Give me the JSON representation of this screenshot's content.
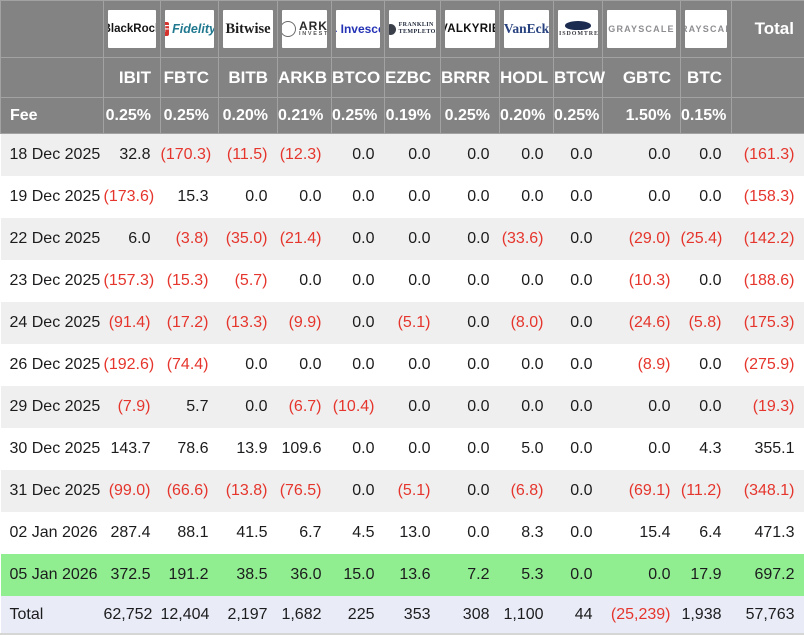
{
  "colors": {
    "header_bg": "#838383",
    "row_odd": "#efefef",
    "row_even": "#ffffff",
    "highlight_row": "#90ee90",
    "total_row_bg": "#e9ecf7",
    "negative": "#e5352c"
  },
  "table": {
    "fee_label": "Fee",
    "total_label": "Total",
    "columns": [
      {
        "logo": {
          "style": "blackrock",
          "text": "BlackRock"
        },
        "ticker": "IBIT",
        "fee": "0.25%"
      },
      {
        "logo": {
          "style": "fidelity",
          "icon": "F",
          "text": "Fidelity"
        },
        "ticker": "FBTC",
        "fee": "0.25%"
      },
      {
        "logo": {
          "style": "bitwise",
          "text": "Bitwise"
        },
        "ticker": "BITB",
        "fee": "0.20%"
      },
      {
        "logo": {
          "style": "ark",
          "text": "ARK",
          "sub": "INVEST"
        },
        "ticker": "ARKB",
        "fee": "0.21%"
      },
      {
        "logo": {
          "style": "invesco",
          "text": "Invesco"
        },
        "ticker": "BTCO",
        "fee": "0.25%"
      },
      {
        "logo": {
          "style": "franklin",
          "text": "FRANKLIN",
          "sub": "TEMPLETON"
        },
        "ticker": "EZBC",
        "fee": "0.19%"
      },
      {
        "logo": {
          "style": "valkyrie",
          "text": "VALKYRIE"
        },
        "ticker": "BRRR",
        "fee": "0.25%"
      },
      {
        "logo": {
          "style": "vaneck",
          "text": "VanEck"
        },
        "ticker": "HODL",
        "fee": "0.20%"
      },
      {
        "logo": {
          "style": "wisdomtree",
          "text": "WISDOMTREE"
        },
        "ticker": "BTCW",
        "fee": "0.25%"
      },
      {
        "logo": {
          "style": "grayscale",
          "text": "GRAYSCALE"
        },
        "ticker": "GBTC",
        "fee": "1.50%"
      },
      {
        "logo": {
          "style": "grayscale",
          "text": "GRAYSCALE"
        },
        "ticker": "BTC",
        "fee": "0.15%"
      }
    ],
    "rows": [
      {
        "date": "18 Dec 2025",
        "values": [
          "32.8",
          "(170.3)",
          "(11.5)",
          "(12.3)",
          "0.0",
          "0.0",
          "0.0",
          "0.0",
          "0.0",
          "0.0",
          "0.0"
        ],
        "total": "(161.3)"
      },
      {
        "date": "19 Dec 2025",
        "values": [
          "(173.6)",
          "15.3",
          "0.0",
          "0.0",
          "0.0",
          "0.0",
          "0.0",
          "0.0",
          "0.0",
          "0.0",
          "0.0"
        ],
        "total": "(158.3)"
      },
      {
        "date": "22 Dec 2025",
        "values": [
          "6.0",
          "(3.8)",
          "(35.0)",
          "(21.4)",
          "0.0",
          "0.0",
          "0.0",
          "(33.6)",
          "0.0",
          "(29.0)",
          "(25.4)"
        ],
        "total": "(142.2)"
      },
      {
        "date": "23 Dec 2025",
        "values": [
          "(157.3)",
          "(15.3)",
          "(5.7)",
          "0.0",
          "0.0",
          "0.0",
          "0.0",
          "0.0",
          "0.0",
          "(10.3)",
          "0.0"
        ],
        "total": "(188.6)"
      },
      {
        "date": "24 Dec 2025",
        "values": [
          "(91.4)",
          "(17.2)",
          "(13.3)",
          "(9.9)",
          "0.0",
          "(5.1)",
          "0.0",
          "(8.0)",
          "0.0",
          "(24.6)",
          "(5.8)"
        ],
        "total": "(175.3)"
      },
      {
        "date": "26 Dec 2025",
        "values": [
          "(192.6)",
          "(74.4)",
          "0.0",
          "0.0",
          "0.0",
          "0.0",
          "0.0",
          "0.0",
          "0.0",
          "(8.9)",
          "0.0"
        ],
        "total": "(275.9)"
      },
      {
        "date": "29 Dec 2025",
        "values": [
          "(7.9)",
          "5.7",
          "0.0",
          "(6.7)",
          "(10.4)",
          "0.0",
          "0.0",
          "0.0",
          "0.0",
          "0.0",
          "0.0"
        ],
        "total": "(19.3)"
      },
      {
        "date": "30 Dec 2025",
        "values": [
          "143.7",
          "78.6",
          "13.9",
          "109.6",
          "0.0",
          "0.0",
          "0.0",
          "5.0",
          "0.0",
          "0.0",
          "4.3"
        ],
        "total": "355.1"
      },
      {
        "date": "31 Dec 2025",
        "values": [
          "(99.0)",
          "(66.6)",
          "(13.8)",
          "(76.5)",
          "0.0",
          "(5.1)",
          "0.0",
          "(6.8)",
          "0.0",
          "(69.1)",
          "(11.2)"
        ],
        "total": "(348.1)"
      },
      {
        "date": "02 Jan 2026",
        "values": [
          "287.4",
          "88.1",
          "41.5",
          "6.7",
          "4.5",
          "13.0",
          "0.0",
          "8.3",
          "0.0",
          "15.4",
          "6.4"
        ],
        "total": "471.3"
      },
      {
        "date": "05 Jan 2026",
        "highlight": true,
        "values": [
          "372.5",
          "191.2",
          "38.5",
          "36.0",
          "15.0",
          "13.6",
          "7.2",
          "5.3",
          "0.0",
          "0.0",
          "17.9"
        ],
        "total": "697.2"
      }
    ],
    "total_row": {
      "label": "Total",
      "values": [
        "62,752",
        "12,404",
        "2,197",
        "1,682",
        "225",
        "353",
        "308",
        "1,100",
        "44",
        "(25,239)",
        "1,938"
      ],
      "total": "57,763"
    }
  }
}
